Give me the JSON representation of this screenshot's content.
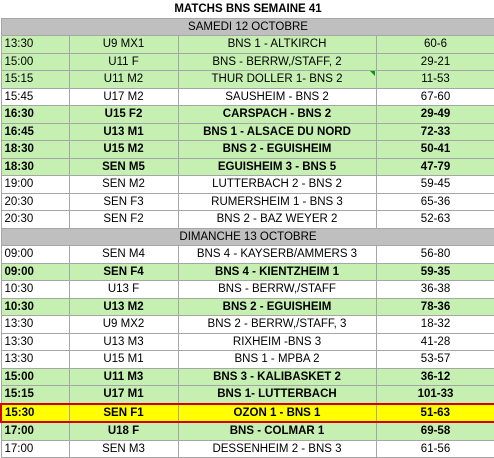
{
  "sheet": {
    "title": "MATCHS BNS SEMAINE 41",
    "days": [
      {
        "label": "SAMEDI 12 OCTOBRE",
        "rows": [
          {
            "time": "13:30",
            "team": "U9 MX1",
            "match": "BNS 1 - ALTKIRCH",
            "score": "60-6",
            "fill": "green",
            "bold": false
          },
          {
            "time": "15:00",
            "team": "U11 F",
            "match": "BNS - BERRW,/STAFF, 2",
            "score": "29-21",
            "fill": "green",
            "bold": false
          },
          {
            "time": "15:15",
            "team": "U11 M2",
            "match": "THUR DOLLER 1- BNS 2",
            "score": "11-53",
            "fill": "green",
            "bold": false
          },
          {
            "time": "15:45",
            "team": "U17 M2",
            "match": "SAUSHEIM - BNS 2",
            "score": "67-60",
            "fill": "white",
            "bold": false
          },
          {
            "time": "16:30",
            "team": "U15 F2",
            "match": "CARSPACH - BNS 2",
            "score": "29-49",
            "fill": "green",
            "bold": true
          },
          {
            "time": "16:45",
            "team": "U13 M1",
            "match": "BNS 1 - ALSACE DU NORD",
            "score": "72-33",
            "fill": "green",
            "bold": true
          },
          {
            "time": "18:30",
            "team": "U15 M2",
            "match": "BNS 2 - EGUISHEIM",
            "score": "50-41",
            "fill": "green",
            "bold": true
          },
          {
            "time": "18:30",
            "team": "SEN M5",
            "match": "EGUISHEIM 3 - BNS 5",
            "score": "47-79",
            "fill": "green",
            "bold": true
          },
          {
            "time": "19:00",
            "team": "SEN M2",
            "match": "LUTTERBACH  2 - BNS 2",
            "score": "59-45",
            "fill": "white",
            "bold": false
          },
          {
            "time": "20:30",
            "team": "SEN F3",
            "match": "RUMERSHEIM 1 - BNS 3",
            "score": "65-36",
            "fill": "white",
            "bold": false
          },
          {
            "time": "20:30",
            "team": "SEN F2",
            "match": "BNS 2 - BAZ WEYER 2",
            "score": "52-63",
            "fill": "white",
            "bold": false
          }
        ]
      },
      {
        "label": "DIMANCHE 13 OCTOBRE",
        "rows": [
          {
            "time": "09:00",
            "team": "SEN M4",
            "match": "BNS 4 - KAYSERB/AMMERS 3",
            "score": "56-80",
            "fill": "white",
            "bold": false
          },
          {
            "time": "09:00",
            "team": "SEN F4",
            "match": "BNS 4 - KIENTZHEIM 1",
            "score": "59-35",
            "fill": "green",
            "bold": true
          },
          {
            "time": "10:30",
            "team": "U13 F",
            "match": "BNS - BERRW,/STAFF",
            "score": "36-38",
            "fill": "white",
            "bold": false
          },
          {
            "time": "10:30",
            "team": "U13 M2",
            "match": "BNS 2 - EGUISHEIM",
            "score": "78-36",
            "fill": "green",
            "bold": true
          },
          {
            "time": "13:30",
            "team": "U9 MX2",
            "match": "BNS 2 - BERRW,/STAFF, 3",
            "score": "18-32",
            "fill": "white",
            "bold": false
          },
          {
            "time": "13:30",
            "team": "U13 M3",
            "match": "RIXHEIM -BNS 3",
            "score": "41-28",
            "fill": "white",
            "bold": false
          },
          {
            "time": "13:30",
            "team": "U15 M1",
            "match": "BNS 1 - MPBA 2",
            "score": "53-57",
            "fill": "white",
            "bold": false
          },
          {
            "time": "15:00",
            "team": "U11 M3",
            "match": "BNS 3 - KALIBASKET 2",
            "score": "36-12",
            "fill": "green",
            "bold": true
          },
          {
            "time": "15:15",
            "team": "U17 M1",
            "match": "BNS 1- LUTTERBACH",
            "score": "101-33",
            "fill": "green",
            "bold": true
          },
          {
            "time": "15:30",
            "team": "SEN F1",
            "match": "OZON  1 - BNS 1",
            "score": "51-63",
            "fill": "yellow",
            "bold": true
          },
          {
            "time": "17:00",
            "team": "U18 F",
            "match": "BNS - COLMAR 1",
            "score": "69-58",
            "fill": "green",
            "bold": true
          },
          {
            "time": "17:00",
            "team": "SEN M3",
            "match": "DESSENHEIM 2 - BNS 3",
            "score": "61-56",
            "fill": "white",
            "bold": false
          }
        ]
      }
    ]
  }
}
